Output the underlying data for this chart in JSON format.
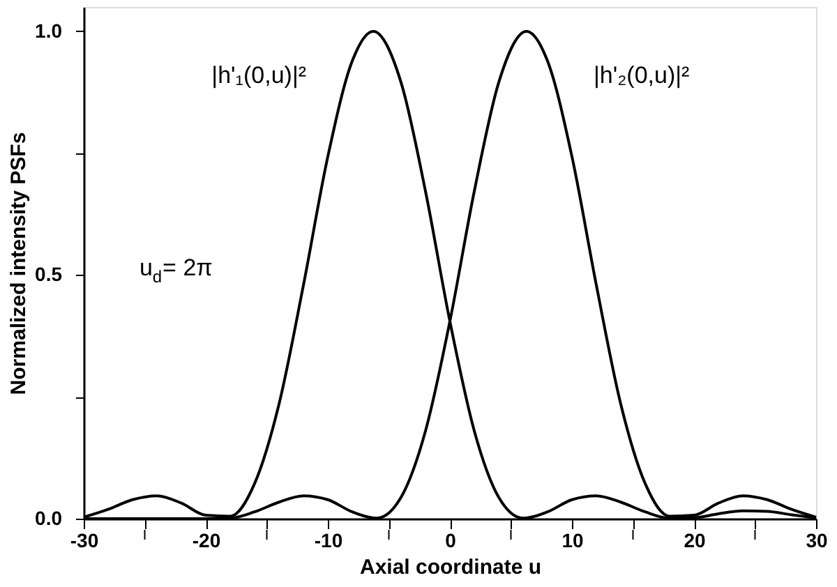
{
  "chart_data": {
    "type": "line",
    "xlabel": "Axial coordinate u",
    "ylabel": "Normalized intensity PSFs",
    "x": [
      -30,
      -28,
      -26,
      -24,
      -22,
      -20,
      -18,
      -16,
      -14,
      -12,
      -10,
      -8,
      -6.28,
      -4,
      -2,
      0,
      2,
      4,
      6,
      8,
      10,
      12,
      14,
      16,
      18,
      20,
      22,
      24,
      26,
      28,
      30
    ],
    "series": [
      {
        "name": "|h'₁(0,u)|²",
        "color": "#000000",
        "values": [
          0.003,
          0.019,
          0.039,
          0.047,
          0.032,
          0.007,
          0.005,
          0.072,
          0.235,
          0.479,
          0.743,
          0.939,
          1.0,
          0.895,
          0.672,
          0.405,
          0.18,
          0.044,
          0.001,
          0.014,
          0.039,
          0.047,
          0.034,
          0.014,
          0.001,
          0.002,
          0.01,
          0.016,
          0.015,
          0.008,
          0.002
        ]
      },
      {
        "name": "|h'₂(0,u)|²",
        "color": "#000000",
        "x": [
          -30,
          -28,
          -26,
          -24,
          -22,
          -20,
          -18,
          -16,
          -14,
          -12,
          -10,
          -8,
          -6,
          -4,
          -2,
          0,
          2,
          4,
          6.28,
          8,
          10,
          12,
          14,
          16,
          18,
          20,
          22,
          24,
          26,
          28,
          30
        ],
        "values": [
          0.0,
          0.0,
          0.0,
          0.0,
          0.0,
          0.0,
          0.001,
          0.014,
          0.034,
          0.047,
          0.039,
          0.014,
          0.001,
          0.044,
          0.18,
          0.405,
          0.672,
          0.895,
          1.0,
          0.939,
          0.743,
          0.479,
          0.235,
          0.072,
          0.005,
          0.007,
          0.032,
          0.047,
          0.039,
          0.019,
          0.003
        ]
      }
    ],
    "xlim": [
      -30,
      30
    ],
    "ylim": [
      0,
      1.05
    ],
    "xticks": [
      -30,
      {
        "value": -25,
        "label": null
      },
      -20,
      {
        "value": -15,
        "label": null
      },
      -10,
      {
        "value": -5,
        "label": null
      },
      0,
      {
        "value": 5,
        "label": null
      },
      10,
      {
        "value": 15,
        "label": null
      },
      20,
      {
        "value": 25,
        "label": null
      },
      30
    ],
    "yticks": [
      {
        "value": 0,
        "label": "0.0"
      },
      {
        "value": 0.25,
        "label": null
      },
      0.5,
      {
        "value": 0.75,
        "label": null
      },
      {
        "value": 1,
        "label": "1.0"
      }
    ],
    "grid": false,
    "legend": false,
    "line_style": "solid",
    "marker": "none",
    "annotations": [
      "u$_{d}$= 2π"
    ]
  }
}
